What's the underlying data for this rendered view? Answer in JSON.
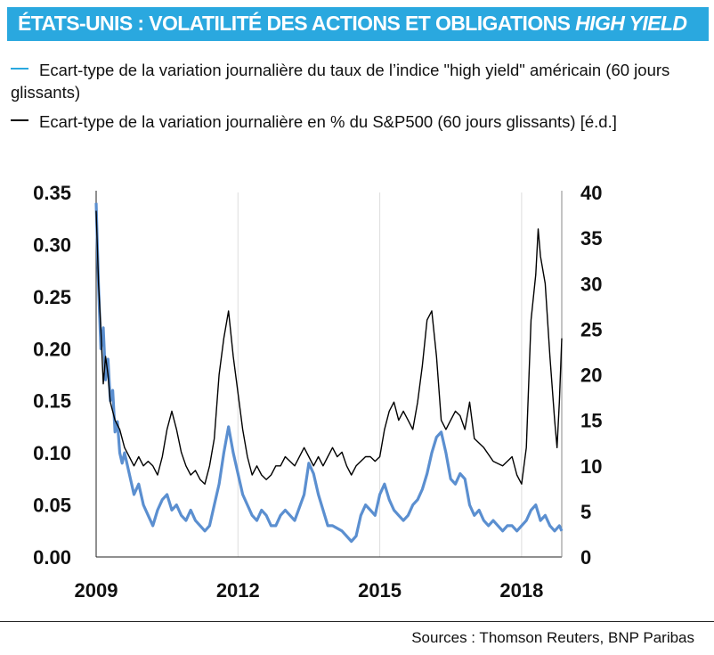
{
  "title": {
    "main": "ÉTATS-UNIS  : VOLATILITÉ DES ACTIONS ET OBLIGATIONS ",
    "italic": "HIGH YIELD"
  },
  "colors": {
    "title_bg": "#2aa8df",
    "series_hy": "#5b8fd0",
    "series_sp": "#000000",
    "grid": "#dddddd"
  },
  "source": "Sources : Thomson Reuters, BNP Paribas",
  "chart_data": {
    "type": "line",
    "grid": "vertical",
    "x_ticks": [
      "2009",
      "2012",
      "2015",
      "2018"
    ],
    "y_left": {
      "ticks": [
        "0.00",
        "0.05",
        "0.10",
        "0.15",
        "0.20",
        "0.25",
        "0.30",
        "0.35"
      ],
      "ylim": [
        0,
        0.35
      ]
    },
    "y_right": {
      "ticks": [
        "0",
        "5",
        "10",
        "15",
        "20",
        "25",
        "30",
        "35",
        "40"
      ],
      "ylim": [
        0,
        40
      ]
    },
    "xlim": [
      2009.0,
      2018.85
    ],
    "series": [
      {
        "name": "Ecart-type de la variation journalière du taux de l’indice \"high yield\" américain (60 jours glissants)",
        "axis": "left",
        "x": [
          2009.0,
          2009.05,
          2009.1,
          2009.15,
          2009.2,
          2009.25,
          2009.3,
          2009.35,
          2009.4,
          2009.45,
          2009.5,
          2009.55,
          2009.6,
          2009.7,
          2009.8,
          2009.9,
          2010.0,
          2010.1,
          2010.2,
          2010.3,
          2010.4,
          2010.5,
          2010.6,
          2010.7,
          2010.8,
          2010.9,
          2011.0,
          2011.1,
          2011.2,
          2011.3,
          2011.4,
          2011.5,
          2011.6,
          2011.7,
          2011.8,
          2011.9,
          2012.0,
          2012.1,
          2012.2,
          2012.3,
          2012.4,
          2012.5,
          2012.6,
          2012.7,
          2012.8,
          2012.9,
          2013.0,
          2013.2,
          2013.4,
          2013.5,
          2013.6,
          2013.7,
          2013.8,
          2013.9,
          2014.0,
          2014.2,
          2014.4,
          2014.5,
          2014.6,
          2014.7,
          2014.8,
          2014.9,
          2015.0,
          2015.1,
          2015.2,
          2015.3,
          2015.4,
          2015.5,
          2015.6,
          2015.7,
          2015.8,
          2015.9,
          2016.0,
          2016.1,
          2016.2,
          2016.3,
          2016.4,
          2016.5,
          2016.6,
          2016.7,
          2016.8,
          2016.9,
          2017.0,
          2017.1,
          2017.2,
          2017.3,
          2017.4,
          2017.5,
          2017.6,
          2017.7,
          2017.8,
          2017.9,
          2018.0,
          2018.1,
          2018.2,
          2018.3,
          2018.4,
          2018.5,
          2018.6,
          2018.7,
          2018.8,
          2018.85
        ],
        "values": [
          0.34,
          0.26,
          0.2,
          0.22,
          0.17,
          0.19,
          0.15,
          0.16,
          0.12,
          0.13,
          0.1,
          0.09,
          0.1,
          0.08,
          0.06,
          0.07,
          0.05,
          0.04,
          0.03,
          0.045,
          0.055,
          0.06,
          0.045,
          0.05,
          0.04,
          0.035,
          0.045,
          0.035,
          0.03,
          0.025,
          0.03,
          0.05,
          0.07,
          0.1,
          0.125,
          0.1,
          0.08,
          0.06,
          0.05,
          0.04,
          0.035,
          0.045,
          0.04,
          0.03,
          0.03,
          0.04,
          0.045,
          0.035,
          0.06,
          0.09,
          0.08,
          0.06,
          0.045,
          0.03,
          0.03,
          0.025,
          0.015,
          0.02,
          0.04,
          0.05,
          0.045,
          0.04,
          0.06,
          0.07,
          0.055,
          0.045,
          0.04,
          0.035,
          0.04,
          0.05,
          0.055,
          0.065,
          0.08,
          0.1,
          0.115,
          0.12,
          0.1,
          0.075,
          0.07,
          0.08,
          0.075,
          0.05,
          0.04,
          0.045,
          0.035,
          0.03,
          0.035,
          0.03,
          0.025,
          0.03,
          0.03,
          0.025,
          0.03,
          0.035,
          0.045,
          0.05,
          0.035,
          0.04,
          0.03,
          0.025,
          0.03,
          0.025
        ]
      },
      {
        "name": "Ecart-type de la variation journalière en % du S&P500 (60 jours glissants) [é.d.]",
        "axis": "right",
        "x": [
          2009.0,
          2009.05,
          2009.1,
          2009.15,
          2009.2,
          2009.25,
          2009.3,
          2009.4,
          2009.5,
          2009.6,
          2009.7,
          2009.8,
          2009.9,
          2010.0,
          2010.1,
          2010.2,
          2010.3,
          2010.4,
          2010.5,
          2010.6,
          2010.7,
          2010.8,
          2010.9,
          2011.0,
          2011.1,
          2011.2,
          2011.3,
          2011.4,
          2011.5,
          2011.6,
          2011.7,
          2011.8,
          2011.9,
          2012.0,
          2012.1,
          2012.2,
          2012.3,
          2012.4,
          2012.5,
          2012.6,
          2012.7,
          2012.8,
          2012.9,
          2013.0,
          2013.2,
          2013.4,
          2013.5,
          2013.6,
          2013.7,
          2013.8,
          2013.9,
          2014.0,
          2014.1,
          2014.2,
          2014.3,
          2014.4,
          2014.5,
          2014.6,
          2014.7,
          2014.8,
          2014.9,
          2015.0,
          2015.1,
          2015.2,
          2015.3,
          2015.4,
          2015.5,
          2015.6,
          2015.7,
          2015.8,
          2015.9,
          2016.0,
          2016.1,
          2016.2,
          2016.3,
          2016.4,
          2016.5,
          2016.6,
          2016.7,
          2016.8,
          2016.9,
          2017.0,
          2017.2,
          2017.4,
          2017.6,
          2017.8,
          2017.9,
          2018.0,
          2018.1,
          2018.2,
          2018.3,
          2018.35,
          2018.4,
          2018.5,
          2018.6,
          2018.7,
          2018.75,
          2018.8,
          2018.85
        ],
        "values": [
          38,
          30,
          25,
          19,
          22,
          20,
          17,
          15,
          14,
          12,
          11,
          10,
          11,
          10,
          10.5,
          10,
          9,
          11,
          14,
          16,
          14,
          11.5,
          10,
          9,
          9.5,
          8.5,
          8,
          10,
          13,
          20,
          24,
          27,
          22,
          18,
          14,
          11,
          9,
          10,
          9,
          8.5,
          9,
          10,
          10,
          11,
          10,
          12,
          11,
          10,
          11,
          10,
          11,
          12,
          11,
          11.5,
          10,
          9,
          10,
          10.5,
          11,
          11,
          10.5,
          11,
          14,
          16,
          17,
          15,
          16,
          15,
          14,
          17,
          21,
          26,
          27,
          22,
          15,
          14,
          15,
          16,
          15.5,
          14,
          17,
          13,
          12,
          10.5,
          10,
          11,
          9,
          8,
          12,
          26,
          31,
          36,
          33,
          30,
          22,
          15,
          12,
          17,
          24
        ]
      }
    ]
  }
}
